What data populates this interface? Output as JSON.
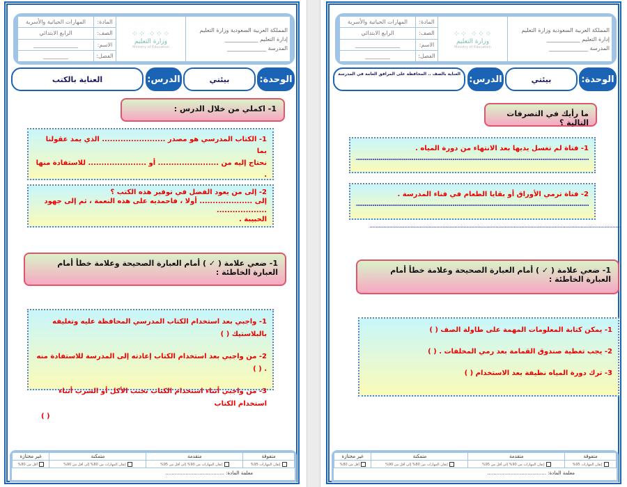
{
  "header": {
    "ministry": "المملكة العربية السعودية وزارة التعليم",
    "edu_admin": "إدارة التعليم ____________",
    "school": "المدرسة ______________",
    "logo_text": "وزارة التعليم",
    "logo_sub": "Ministry of Education",
    "subject_label": "المادة:",
    "subject_value": "المهارات الحياتية والأسرية",
    "grade_label": "الصف:",
    "grade_value": "الرابع الابتدائي",
    "name_label": "الاسم:",
    "name_value": "________________",
    "class_label": "الفصل:",
    "class_value": "_________",
    "unit_label": "الوحدة:",
    "unit_value": "بيئتي",
    "lesson_label": "الدرس:"
  },
  "pages": [
    {
      "lesson_value": "العناية بالكتب",
      "section1_title": "1- اكملي من خلال الدرس :",
      "q1_line1": "1- الكتاب المدرسي هو مصدر ........................ الذي يمد عقولنا بما",
      "q1_line2": "نحتاج إليه من ....................... أو ...................... للاستفادة منها .",
      "q2_line1": "2- إلى من يعود الفضل في توفير هذه الكتب ؟",
      "q2_line2": "إلى .................... أولا ، فاحمديه على هذه النعمة ، ثم إلى جهود ...................",
      "q2_line3": "الحبيبة .",
      "section2_title": "1- ضعي علامة ( ✓ ) أمام العبارة الصحيحة وعلامة خطأ أمام العبارة الخاطئة :",
      "items": [
        "1- واجبي بعد استخدام الكتاب المدرسي المحافظة عليه وتغليفه بالبلاستيك ( )",
        "2- من واجبي بعد استخدام الكتاب إعادته إلى المدرسة للاستفادة منه . ( )",
        "3- من واجبي أثناء استخدام الكتاب تجنب الأكل أو الشرب أثناء استخدام الكتاب",
        "( )"
      ]
    },
    {
      "lesson_value": "العناية بالصف .. المحافظة على المرافق العامة في المدرسة",
      "section1_title": "ما رأيك في التصرفات التالية ؟",
      "q1_line1": "1- فتاة لم تغسل يديها بعد الانتهاء من دورة المياه .",
      "q2_line1": "2- فتاة ترمي الأوراق أو بقايا الطعام في فناء المدرسة .",
      "answer_line": "........................................................................................................................................................................",
      "section2_title": "1- ضعي علامة ( ✓ ) أمام العبارة الصحيحة وعلامة خطأ أمام العبارة الخاطئة :",
      "items": [
        "1- يمكن كتابة المعلومات المهمة على طاولة الصف ( )",
        "2- يجب تغطية صندوق القمامة بعد رمي المخلفات . ( )",
        "3- ترك دورة المياه نظيفة بعد الاستخدام ( )"
      ]
    }
  ],
  "footer": {
    "levels": [
      "متفوقة",
      "متقدمة",
      "متمكنة",
      "غير مجتازة"
    ],
    "criteria": [
      "إتقان المهارات 95%",
      "إتقان المهارات من 90% إلى أقل من 95%",
      "إتقان المهارات من 80% إلى أقل من 90%",
      "أقل من 80%"
    ],
    "teacher": "معلمة المادة: ......................................"
  }
}
